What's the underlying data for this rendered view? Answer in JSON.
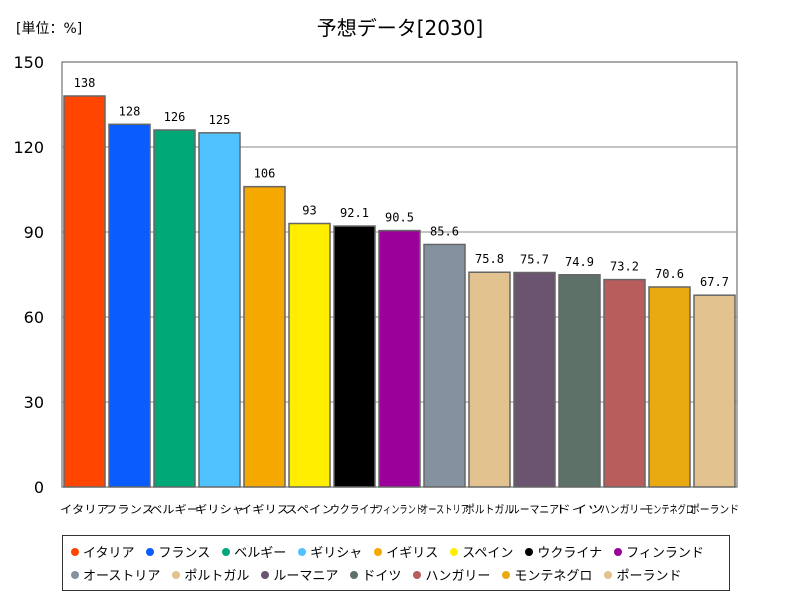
{
  "header": {
    "unit_label": "[単位：%]"
  },
  "chart_data": {
    "type": "bar",
    "title": "予想データ[2030]",
    "categories": [
      "イタリア",
      "フランス",
      "ベルギー",
      "ギリシャ",
      "イギリス",
      "スペイン",
      "ウクライナ",
      "フィンランド",
      "オーストリア",
      "ポルトガル",
      "ルーマニア",
      "ドイツ",
      "ハンガリー",
      "モンテネグロ",
      "ポーランド"
    ],
    "values": [
      138,
      128,
      126,
      125,
      106,
      93,
      92.1,
      90.5,
      85.6,
      75.8,
      75.7,
      74.9,
      73.2,
      70.6,
      67.7
    ],
    "value_labels": [
      "138",
      "128",
      "126",
      "125",
      "106",
      "93",
      "92.1",
      "90.5",
      "85.6",
      "75.8",
      "75.7",
      "74.9",
      "73.2",
      "70.6",
      "67.7"
    ],
    "colors": [
      "#ff4500",
      "#0a5cff",
      "#00a878",
      "#4fc3ff",
      "#f5a800",
      "#ffee00",
      "#000000",
      "#9b009b",
      "#83929e",
      "#e2c38f",
      "#6b5470",
      "#5d7168",
      "#b85c5c",
      "#e8aa10",
      "#e2c38f"
    ],
    "ylim": [
      0,
      150
    ],
    "yticks": [
      0,
      30,
      60,
      90,
      120,
      150
    ],
    "grid": true,
    "legend_position": "bottom",
    "xlabel": "",
    "ylabel": ""
  }
}
